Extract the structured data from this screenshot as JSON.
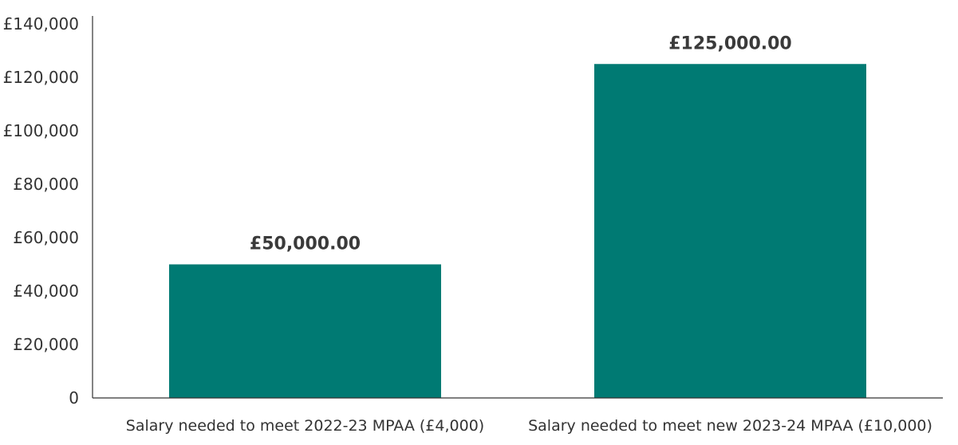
{
  "chart_data": {
    "type": "bar",
    "title": "",
    "xlabel": "",
    "ylabel": "",
    "categories": [
      "Salary needed to meet 2022-23 MPAA (£4,000)",
      "Salary needed to meet new 2023-24 MPAA (£10,000)"
    ],
    "values": [
      50000,
      125000
    ],
    "data_labels": [
      "£50,000.00",
      "£125,000.00"
    ],
    "ylim": [
      0,
      140000
    ],
    "yticks": [
      0,
      20000,
      40000,
      60000,
      80000,
      100000,
      120000,
      140000
    ],
    "ytick_labels": [
      "0",
      "£20,000",
      "£40,000",
      "£60,000",
      "£80,000",
      "£100,000",
      "£120,000",
      "£140,000"
    ],
    "grid": false,
    "legend": "none",
    "colors": {
      "bar": "#007a73",
      "axis": "#333333",
      "text": "#333333"
    }
  }
}
